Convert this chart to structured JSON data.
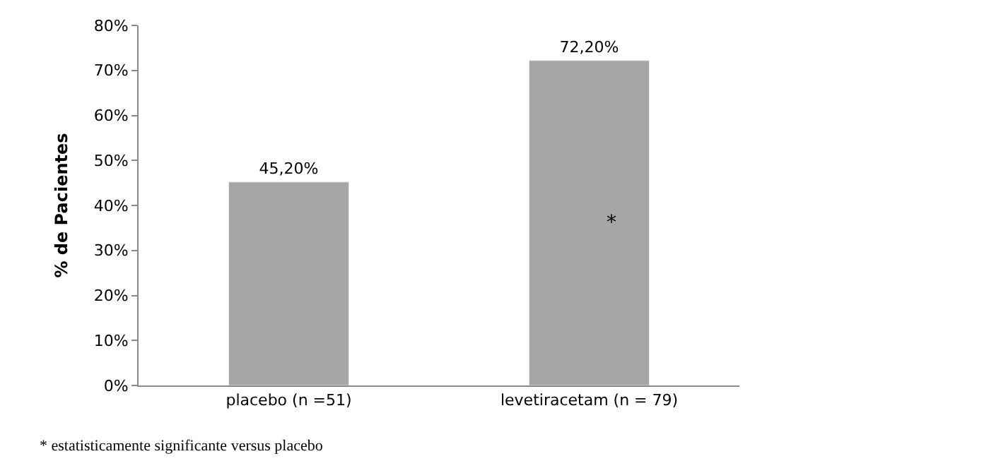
{
  "chart_data": {
    "type": "bar",
    "ylabel": "% de Pacientes",
    "categories": [
      "placebo (n =51)",
      "levetiracetam (n = 79)"
    ],
    "values": [
      45.2,
      72.2
    ],
    "color": "#a6a6a6",
    "value_labels": [
      "45,20%",
      "72,20%"
    ],
    "ylim": [
      0,
      80
    ],
    "yticks": [
      {
        "value": 0,
        "label": "0%"
      },
      {
        "value": 10,
        "label": "10%"
      },
      {
        "value": 20,
        "label": "20%"
      },
      {
        "value": 30,
        "label": "30%"
      },
      {
        "value": 40,
        "label": "40%"
      },
      {
        "value": 50,
        "label": "50%"
      },
      {
        "value": 60,
        "label": "60%"
      },
      {
        "value": 70,
        "label": "70%"
      },
      {
        "value": 80,
        "label": "80%"
      }
    ],
    "legend": false,
    "annotations": [
      "*",
      "* estatisticamente significante versus placebo"
    ]
  }
}
